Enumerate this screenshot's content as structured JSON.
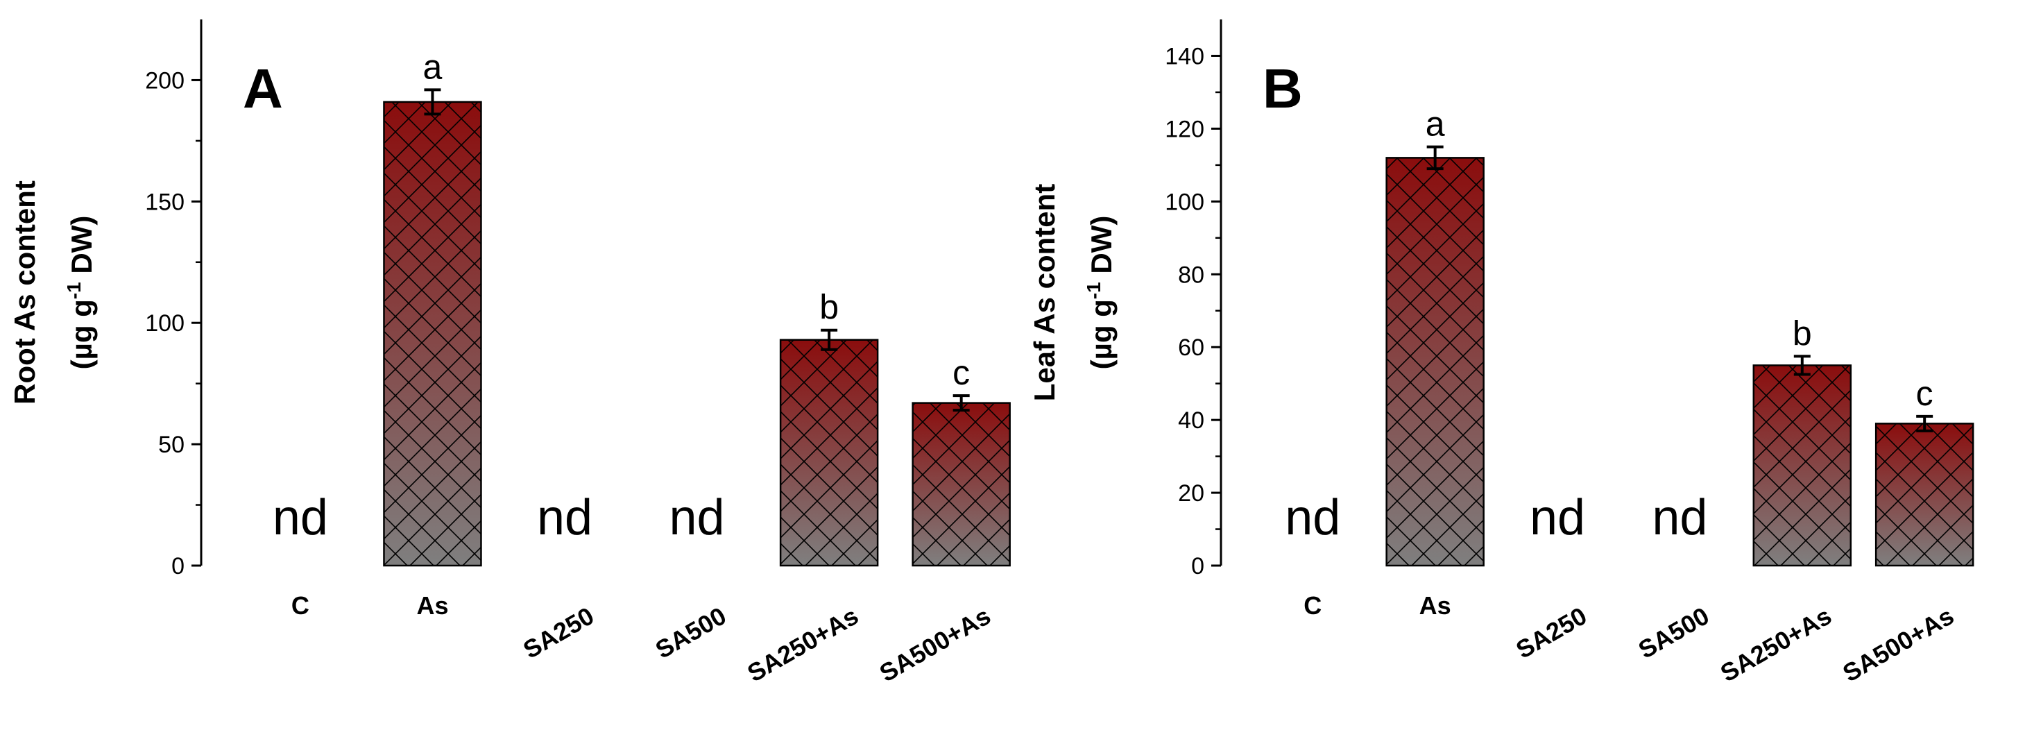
{
  "chart_data": [
    {
      "type": "bar",
      "panel_label": "A",
      "ylabel_line1": "Root As content",
      "ylabel_line2_prefix": "(µg g",
      "ylabel_line2_sup": "-1",
      "ylabel_line2_suffix": " DW)",
      "ylim": [
        0,
        225
      ],
      "yticks": [
        0,
        50,
        100,
        150,
        200
      ],
      "categories": [
        "C",
        "As",
        "SA250",
        "SA500",
        "SA250+As",
        "SA500+As"
      ],
      "values": [
        null,
        191,
        null,
        null,
        93,
        67
      ],
      "errors": [
        null,
        5,
        null,
        null,
        4,
        3
      ],
      "significance": [
        "",
        "a",
        "",
        "",
        "b",
        "c"
      ],
      "nd_labels": [
        "nd",
        "",
        "nd",
        "nd",
        "",
        ""
      ]
    },
    {
      "type": "bar",
      "panel_label": "B",
      "ylabel_line1": "Leaf As content",
      "ylabel_line2_prefix": "(µg g",
      "ylabel_line2_sup": "-1",
      "ylabel_line2_suffix": " DW)",
      "ylim": [
        0,
        150
      ],
      "yticks": [
        0,
        20,
        40,
        60,
        80,
        100,
        120,
        140
      ],
      "categories": [
        "C",
        "As",
        "SA250",
        "SA500",
        "SA250+As",
        "SA500+As"
      ],
      "values": [
        null,
        112,
        null,
        null,
        55,
        39
      ],
      "errors": [
        null,
        3,
        null,
        null,
        2.5,
        2
      ],
      "significance": [
        "",
        "a",
        "",
        "",
        "b",
        "c"
      ],
      "nd_labels": [
        "nd",
        "",
        "nd",
        "nd",
        "",
        ""
      ]
    }
  ],
  "colors": {
    "bar_top": "#8b0d0d",
    "bar_bottom": "#7f7f7f",
    "hatch": "#000000"
  }
}
